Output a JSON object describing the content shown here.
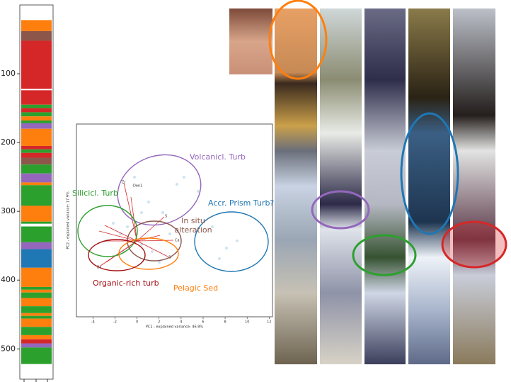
{
  "chart_data": [
    {
      "type": "log",
      "ylim": [
        0,
        544
      ],
      "yticks": [
        100,
        200,
        300,
        400,
        500
      ],
      "bands": [
        {
          "top": 22,
          "bottom": 38,
          "color": "#ff7f0e"
        },
        {
          "top": 38,
          "bottom": 52,
          "color": "#8c564b"
        },
        {
          "top": 52,
          "bottom": 122,
          "color": "#d62728"
        },
        {
          "top": 124,
          "bottom": 145,
          "color": "#d62728"
        },
        {
          "top": 145,
          "bottom": 150,
          "color": "#2ca02c"
        },
        {
          "top": 150,
          "bottom": 156,
          "color": "#d62728"
        },
        {
          "top": 156,
          "bottom": 162,
          "color": "#2ca02c"
        },
        {
          "top": 162,
          "bottom": 168,
          "color": "#ff7f0e"
        },
        {
          "top": 168,
          "bottom": 172,
          "color": "#2ca02c"
        },
        {
          "top": 172,
          "bottom": 180,
          "color": "#9467bd"
        },
        {
          "top": 180,
          "bottom": 205,
          "color": "#ff7f0e"
        },
        {
          "top": 205,
          "bottom": 210,
          "color": "#d62728"
        },
        {
          "top": 210,
          "bottom": 215,
          "color": "#2ca02c"
        },
        {
          "top": 215,
          "bottom": 222,
          "color": "#d62728"
        },
        {
          "top": 222,
          "bottom": 232,
          "color": "#8c564b"
        },
        {
          "top": 232,
          "bottom": 245,
          "color": "#2ca02c"
        },
        {
          "top": 245,
          "bottom": 258,
          "color": "#9467bd"
        },
        {
          "top": 258,
          "bottom": 262,
          "color": "#ff7f0e"
        },
        {
          "top": 262,
          "bottom": 292,
          "color": "#2ca02c"
        },
        {
          "top": 292,
          "bottom": 315,
          "color": "#ff7f0e"
        },
        {
          "top": 315,
          "bottom": 318,
          "color": "#2ca02c"
        },
        {
          "top": 322,
          "bottom": 345,
          "color": "#2ca02c"
        },
        {
          "top": 345,
          "bottom": 355,
          "color": "#9467bd"
        },
        {
          "top": 355,
          "bottom": 382,
          "color": "#1f77b4"
        },
        {
          "top": 382,
          "bottom": 410,
          "color": "#ff7f0e"
        },
        {
          "top": 410,
          "bottom": 414,
          "color": "#2ca02c"
        },
        {
          "top": 414,
          "bottom": 418,
          "color": "#ff7f0e"
        },
        {
          "top": 418,
          "bottom": 426,
          "color": "#2ca02c"
        },
        {
          "top": 426,
          "bottom": 438,
          "color": "#ff7f0e"
        },
        {
          "top": 438,
          "bottom": 448,
          "color": "#2ca02c"
        },
        {
          "top": 448,
          "bottom": 452,
          "color": "#ff7f0e"
        },
        {
          "top": 452,
          "bottom": 456,
          "color": "#2ca02c"
        },
        {
          "top": 456,
          "bottom": 468,
          "color": "#ff7f0e"
        },
        {
          "top": 468,
          "bottom": 480,
          "color": "#2ca02c"
        },
        {
          "top": 480,
          "bottom": 486,
          "color": "#ff7f0e"
        },
        {
          "top": 486,
          "bottom": 492,
          "color": "#d62728"
        },
        {
          "top": 492,
          "bottom": 498,
          "color": "#9467bd"
        },
        {
          "top": 498,
          "bottom": 522,
          "color": "#2ca02c"
        }
      ]
    },
    {
      "type": "scatter",
      "x_label": "PC1 - explained variance: 46.9%",
      "y_label": "PC2 - explained variance: 17.9%",
      "xlim": [
        -5.5,
        12.3
      ],
      "xticks": [
        -4,
        -2,
        0,
        2,
        4,
        6,
        8,
        10,
        12
      ],
      "vector_labels": [
        "Zr",
        "Den1",
        "S",
        "Ca",
        "Sr",
        "Ba"
      ],
      "groups": [
        "Volcanicl. Turb",
        "Accr. Prism Turb?",
        "Silicicl. Turb",
        "In situ alteration",
        "Pelagic Sed",
        "Organic-rich turb"
      ]
    }
  ]
}
